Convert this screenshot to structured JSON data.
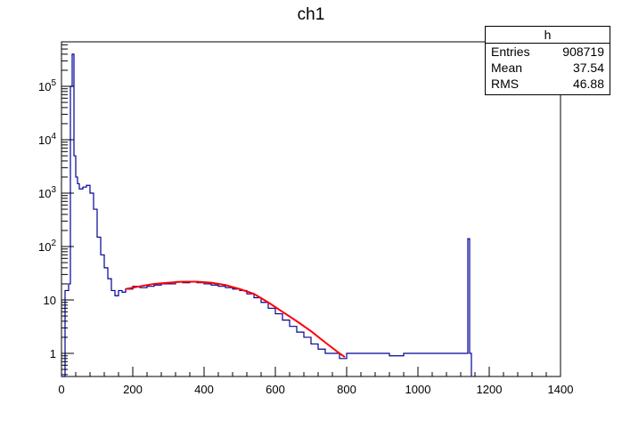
{
  "title": "ch1",
  "stats": {
    "name": "h",
    "rows": [
      {
        "label": "Entries",
        "value": "908719"
      },
      {
        "label": "Mean",
        "value": "37.54"
      },
      {
        "label": "RMS",
        "value": "46.88"
      }
    ]
  },
  "colors": {
    "histogram": "#000099",
    "fit": "#ff0000",
    "axis": "#000000"
  },
  "chart_data": {
    "type": "line",
    "title": "ch1",
    "xlabel": "",
    "ylabel": "",
    "xlim": [
      0,
      1400
    ],
    "ylim": [
      0.4,
      700000
    ],
    "yscale": "log",
    "grid": false,
    "xticks": [
      "0",
      "200",
      "400",
      "600",
      "800",
      "1000",
      "1200",
      "1400"
    ],
    "yticks": [
      {
        "base": "1",
        "exp": ""
      },
      {
        "base": "10",
        "exp": ""
      },
      {
        "base": "10",
        "exp": "2"
      },
      {
        "base": "10",
        "exp": "3"
      },
      {
        "base": "10",
        "exp": "4"
      },
      {
        "base": "10",
        "exp": "5"
      }
    ],
    "series": [
      {
        "kind": "histogram",
        "x": [
          0,
          10,
          20,
          25,
          30,
          35,
          40,
          45,
          50,
          60,
          70,
          80,
          90,
          100,
          110,
          120,
          130,
          140,
          150,
          160,
          170,
          180,
          200,
          220,
          240,
          260,
          280,
          300,
          320,
          340,
          360,
          380,
          400,
          420,
          440,
          460,
          480,
          500,
          520,
          540,
          560,
          580,
          600,
          620,
          640,
          660,
          680,
          700,
          720,
          740,
          760,
          780,
          800,
          840,
          880,
          920,
          960,
          1000,
          1040,
          1080,
          1120,
          1140,
          1145,
          1150
        ],
        "y": [
          0,
          15,
          20,
          100000,
          400000,
          5000,
          2000,
          1500,
          1200,
          1300,
          1400,
          1000,
          500,
          150,
          70,
          40,
          25,
          15,
          12,
          15,
          14,
          16,
          18,
          17,
          18,
          19,
          20,
          20,
          22,
          21,
          22,
          21,
          20,
          19,
          18,
          17,
          16,
          15,
          13,
          11,
          9,
          7,
          5.5,
          4.2,
          3.2,
          2.5,
          2,
          1.5,
          1.2,
          1,
          1,
          0.8,
          1,
          1,
          1,
          0.9,
          1,
          1,
          1,
          1,
          1,
          140,
          1,
          0
        ]
      },
      {
        "kind": "fit",
        "x": [
          180,
          220,
          260,
          300,
          340,
          380,
          420,
          460,
          500,
          540,
          580,
          620,
          660,
          700,
          740,
          780,
          795
        ],
        "y": [
          16,
          18,
          20,
          21,
          22,
          22,
          21,
          19,
          16,
          13,
          9,
          6,
          4,
          2.6,
          1.6,
          1,
          0.85
        ]
      }
    ]
  }
}
